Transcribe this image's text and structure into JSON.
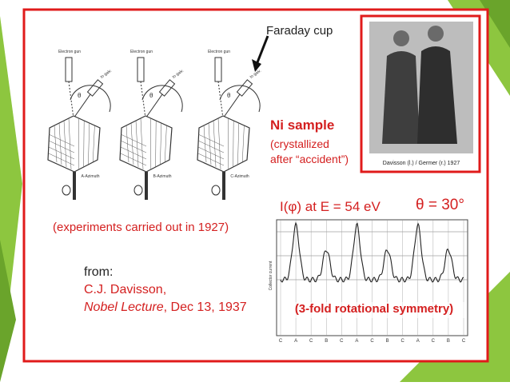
{
  "slide": {
    "diagram": {
      "callout": "Faraday cup",
      "panels": [
        {
          "gun": "Electron gun",
          "galv": "to galv.",
          "angle": "θ",
          "azimuth": "A-Azimuth"
        },
        {
          "gun": "Electron gun",
          "galv": "to galv.",
          "angle": "θ",
          "azimuth": "B-Azimuth"
        },
        {
          "gun": "Electron gun",
          "galv": "to galv.",
          "angle": "θ",
          "azimuth": "C-Azimuth"
        }
      ]
    },
    "sample": {
      "title": "Ni sample",
      "note": [
        "(crystallized",
        "after “accident”)"
      ]
    },
    "photo_caption": "Davisson (l.) / Germer (r.) 1927",
    "experiments": "(experiments carried out in 1927)",
    "source": {
      "from": "from:",
      "author": "C.J. Davisson,",
      "lecture": "Nobel Lecture",
      "date": ", Dec 13, 1937"
    },
    "plot": {
      "title": "I(φ)  at E = 54 eV",
      "angle": "θ = 30°",
      "y_label": "Collector current",
      "x_labels": [
        "C",
        "A",
        "C",
        "B",
        "C",
        "A",
        "C",
        "B",
        "C",
        "A",
        "C",
        "B",
        "C"
      ],
      "symmetry": "(3-fold rotational symmetry)"
    }
  }
}
